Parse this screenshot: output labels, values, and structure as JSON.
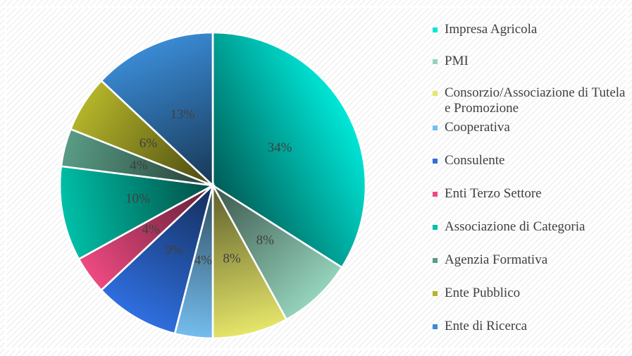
{
  "chart_data": {
    "type": "pie",
    "categories": [
      "Impresa Agricola",
      "PMI",
      "Consorzio/Associazione di Tutela e Promozione",
      "Cooperativa",
      "Consulente",
      "Enti Terzo Settore",
      "Associazione di Categoria",
      "Agenzia Formativa",
      "Ente Pubblico",
      "Ente di Ricerca"
    ],
    "values": [
      34,
      8,
      8,
      4,
      9,
      4,
      10,
      4,
      6,
      13
    ],
    "value_labels": [
      "34%",
      "8%",
      "8%",
      "4%",
      "9%",
      "4%",
      "10%",
      "4%",
      "6%",
      "13%"
    ],
    "colors": [
      "#00e8d8",
      "#95d4bc",
      "#e6e66a",
      "#74bdee",
      "#2f6fe0",
      "#ee4a82",
      "#00c0a8",
      "#5a9c86",
      "#b4b42a",
      "#3a8ad4"
    ],
    "legend": "right"
  }
}
